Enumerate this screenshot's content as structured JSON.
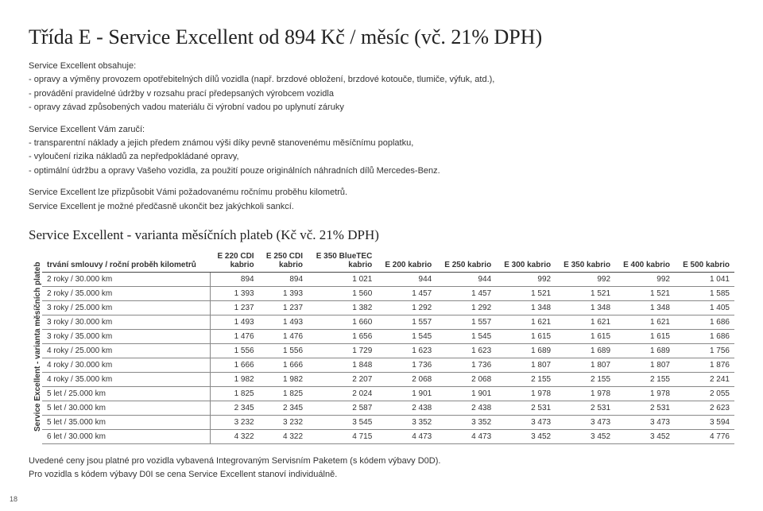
{
  "title": "Třída E - Service Excellent od 894 Kč / měsíc (vč. 21% DPH)",
  "intro1_head": "Service Excellent obsahuje:",
  "intro1_lines": [
    "- opravy a výměny provozem opotřebitelných dílů vozidla (např. brzdové obložení, brzdové kotouče, tlumiče, výfuk, atd.),",
    "- provádění pravidelné údržby v rozsahu prací předepsaných výrobcem vozidla",
    "- opravy závad způsobených vadou materiálu či výrobní vadou po uplynutí záruky"
  ],
  "intro2_head": "Service Excellent Vám zaručí:",
  "intro2_lines": [
    "- transparentní náklady a jejich předem známou výši díky pevně stanovenému měsíčnímu poplatku,",
    "- vyloučení rizika nákladů za nepředpokládané opravy,",
    "- optimální údržbu a opravy Vašeho vozidla, za použití pouze originálních náhradních dílů Mercedes-Benz."
  ],
  "intro3_lines": [
    "Service Excellent lze přizpůsobit Vámi požadovanému ročnímu proběhu kilometrů.",
    "Service Excellent je možné předčasně ukončit bez jakýchkoli sankcí."
  ],
  "table_title": "Service Excellent - varianta měsíčních plateb (Kč vč. 21% DPH)",
  "vlabel": "Service Excellent - varianta měsíčních plateb",
  "columns": [
    "trvání smlouvy / roční proběh kilometrů",
    "E 220 CDI kabrio",
    "E 250 CDI kabrio",
    "E 350 BlueTEC kabrio",
    "E 200 kabrio",
    "E 250 kabrio",
    "E 300 kabrio",
    "E 350 kabrio",
    "E 400 kabrio",
    "E 500 kabrio"
  ],
  "rows": [
    [
      "2 roky / 30.000 km",
      "894",
      "894",
      "1 021",
      "944",
      "944",
      "992",
      "992",
      "992",
      "1 041"
    ],
    [
      "2 roky / 35.000 km",
      "1 393",
      "1 393",
      "1 560",
      "1 457",
      "1 457",
      "1 521",
      "1 521",
      "1 521",
      "1 585"
    ],
    [
      "3 roky / 25.000 km",
      "1 237",
      "1 237",
      "1 382",
      "1 292",
      "1 292",
      "1 348",
      "1 348",
      "1 348",
      "1 405"
    ],
    [
      "3 roky / 30.000 km",
      "1 493",
      "1 493",
      "1 660",
      "1 557",
      "1 557",
      "1 621",
      "1 621",
      "1 621",
      "1 686"
    ],
    [
      "3 roky / 35.000 km",
      "1 476",
      "1 476",
      "1 656",
      "1 545",
      "1 545",
      "1 615",
      "1 615",
      "1 615",
      "1 686"
    ],
    [
      "4 roky / 25.000 km",
      "1 556",
      "1 556",
      "1 729",
      "1 623",
      "1 623",
      "1 689",
      "1 689",
      "1 689",
      "1 756"
    ],
    [
      "4 roky / 30.000 km",
      "1 666",
      "1 666",
      "1 848",
      "1 736",
      "1 736",
      "1 807",
      "1 807",
      "1 807",
      "1 876"
    ],
    [
      "4 roky / 35.000 km",
      "1 982",
      "1 982",
      "2 207",
      "2 068",
      "2 068",
      "2 155",
      "2 155",
      "2 155",
      "2 241"
    ],
    [
      "5 let / 25.000 km",
      "1 825",
      "1 825",
      "2 024",
      "1 901",
      "1 901",
      "1 978",
      "1 978",
      "1 978",
      "2 055"
    ],
    [
      "5 let / 30.000 km",
      "2 345",
      "2 345",
      "2 587",
      "2 438",
      "2 438",
      "2 531",
      "2 531",
      "2 531",
      "2 623"
    ],
    [
      "5 let / 35.000 km",
      "3 232",
      "3 232",
      "3 545",
      "3 352",
      "3 352",
      "3 473",
      "3 473",
      "3 473",
      "3 594"
    ],
    [
      "6 let / 30.000 km",
      "4 322",
      "4 322",
      "4 715",
      "4 473",
      "4 473",
      "3 452",
      "3 452",
      "3 452",
      "4 776"
    ]
  ],
  "footer_lines": [
    "Uvedené ceny jsou platné pro vozidla vybavená Integrovaným Servisním Paketem (s kódem výbavy D0D).",
    "Pro vozidla s kódem výbavy D0I se cena Service Excellent stanoví individuálně."
  ],
  "page_num": "18"
}
